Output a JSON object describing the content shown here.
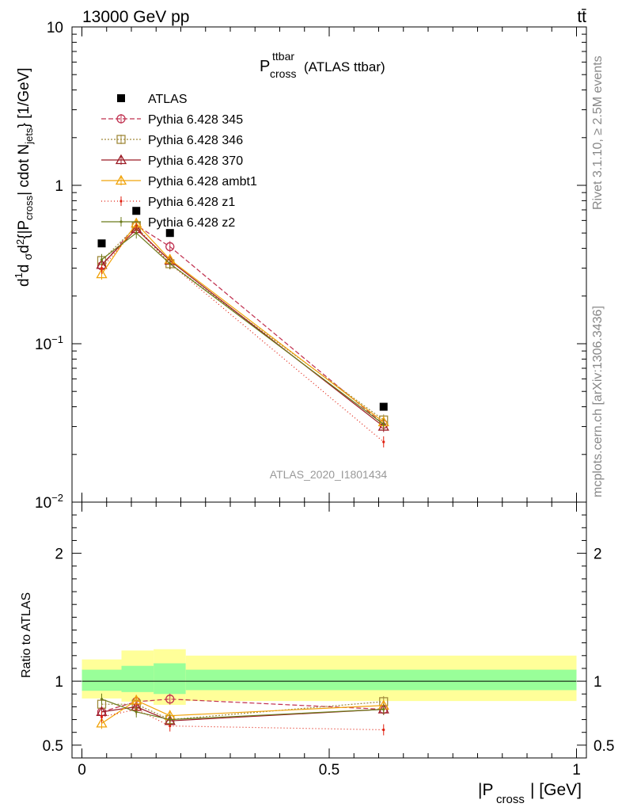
{
  "header": {
    "energy_label": "13000 GeV pp",
    "process_label": "tt̄"
  },
  "side_labels": {
    "rivet": "Rivet 3.1.10, ≥ 2.5M events",
    "mcplots": "mcplots.cern.ch [arXiv:1306.3436]"
  },
  "watermark": "ATLAS_2020_I1801434",
  "colors": {
    "data": "#000000",
    "p345": "#c0304f",
    "p346": "#a08a3c",
    "p370": "#9b1b25",
    "ambt1": "#f0a30a",
    "z1": "#e02010",
    "z2": "#6b7a1a",
    "band_outer": "#ffff99",
    "band_inner": "#99ff99"
  },
  "chart_data": [
    {
      "type": "scatter",
      "panel": "main",
      "title_main": "P",
      "title_sup": "ttbar",
      "title_sub": "cross",
      "title_suffix": "(ATLAS ttbar)",
      "ylabel": "d²σ / d|P_cross| cdot N_jets [1/GeV]",
      "yscale": "log",
      "ylim": [
        0.01,
        10
      ],
      "xlim": [
        -0.02,
        1.02
      ],
      "ytick_labels": [
        {
          "value": 10,
          "base": "10",
          "exp": ""
        },
        {
          "value": 1,
          "base": "1",
          "exp": ""
        },
        {
          "value": 0.1,
          "base": "10",
          "exp": "−1"
        },
        {
          "value": 0.01,
          "base": "10",
          "exp": "−2"
        }
      ],
      "x": [
        0.04,
        0.11,
        0.178,
        0.61
      ],
      "series": [
        {
          "name": "ATLAS",
          "key": "data",
          "marker": "filled-square",
          "dash": "none",
          "values": [
            0.43,
            0.69,
            0.5,
            0.04
          ]
        },
        {
          "name": "Pythia 6.428 345",
          "key": "p345",
          "marker": "open-circle",
          "dash": "6,3",
          "values": [
            0.31,
            0.56,
            0.41,
            0.031
          ]
        },
        {
          "name": "Pythia 6.428 346",
          "key": "p346",
          "marker": "open-square",
          "dash": "2,2",
          "values": [
            0.335,
            0.55,
            0.32,
            0.033
          ]
        },
        {
          "name": "Pythia 6.428 370",
          "key": "p370",
          "marker": "open-triangle",
          "dash": "none",
          "values": [
            0.315,
            0.53,
            0.335,
            0.03
          ]
        },
        {
          "name": "Pythia 6.428 ambt1",
          "key": "ambt1",
          "marker": "open-triangle",
          "dash": "none",
          "values": [
            0.275,
            0.575,
            0.34,
            0.032
          ]
        },
        {
          "name": "Pythia 6.428 z1",
          "key": "z1",
          "marker": "dot",
          "dash": "1,3",
          "values": [
            0.3,
            0.535,
            0.32,
            0.024
          ]
        },
        {
          "name": "Pythia 6.428 z2",
          "key": "z2",
          "marker": "dot",
          "dash": "none",
          "values": [
            0.34,
            0.5,
            0.32,
            0.031
          ]
        }
      ]
    },
    {
      "type": "scatter",
      "panel": "ratio",
      "ylabel": "Ratio to ATLAS",
      "xlabel_main": "|P",
      "xlabel_sub": "cross",
      "xlabel_suffix": "| [GeV]",
      "ylim": [
        0.4,
        2.4
      ],
      "xlim": [
        -0.02,
        1.02
      ],
      "ytick_labels": [
        {
          "value": 2,
          "label": "2"
        },
        {
          "value": 1,
          "label": "1"
        },
        {
          "value": 0.5,
          "label": "0.5"
        }
      ],
      "xtick_labels": [
        {
          "value": 0,
          "label": "0"
        },
        {
          "value": 0.5,
          "label": "0.5"
        },
        {
          "value": 1,
          "label": "1"
        }
      ],
      "bands": [
        {
          "x0": 0.0,
          "x1": 0.08,
          "outer": [
            0.865,
            1.17
          ],
          "inner": [
            0.925,
            1.09
          ]
        },
        {
          "x0": 0.08,
          "x1": 0.145,
          "outer": [
            0.84,
            1.24
          ],
          "inner": [
            0.915,
            1.12
          ]
        },
        {
          "x0": 0.145,
          "x1": 0.21,
          "outer": [
            0.815,
            1.25
          ],
          "inner": [
            0.9,
            1.14
          ]
        },
        {
          "x0": 0.21,
          "x1": 1.0,
          "outer": [
            0.845,
            1.2
          ],
          "inner": [
            0.93,
            1.09
          ]
        }
      ],
      "x": [
        0.04,
        0.11,
        0.178,
        0.61
      ],
      "series": [
        {
          "name": "Pythia 6.428 345",
          "key": "p345",
          "marker": "open-circle",
          "dash": "6,3",
          "values": [
            0.76,
            0.84,
            0.86,
            0.78
          ]
        },
        {
          "name": "Pythia 6.428 346",
          "key": "p346",
          "marker": "open-square",
          "dash": "2,2",
          "values": [
            0.82,
            0.82,
            0.7,
            0.84
          ]
        },
        {
          "name": "Pythia 6.428 370",
          "key": "p370",
          "marker": "open-triangle",
          "dash": "none",
          "values": [
            0.76,
            0.8,
            0.69,
            0.78
          ]
        },
        {
          "name": "Pythia 6.428 ambt1",
          "key": "ambt1",
          "marker": "open-triangle",
          "dash": "none",
          "values": [
            0.67,
            0.85,
            0.73,
            0.81
          ]
        },
        {
          "name": "Pythia 6.428 z1",
          "key": "z1",
          "marker": "dot",
          "dash": "1,3",
          "values": [
            0.72,
            0.78,
            0.65,
            0.62
          ]
        },
        {
          "name": "Pythia 6.428 z2",
          "key": "z2",
          "marker": "dot",
          "dash": "none",
          "values": [
            0.86,
            0.76,
            0.7,
            0.78
          ]
        }
      ]
    }
  ]
}
